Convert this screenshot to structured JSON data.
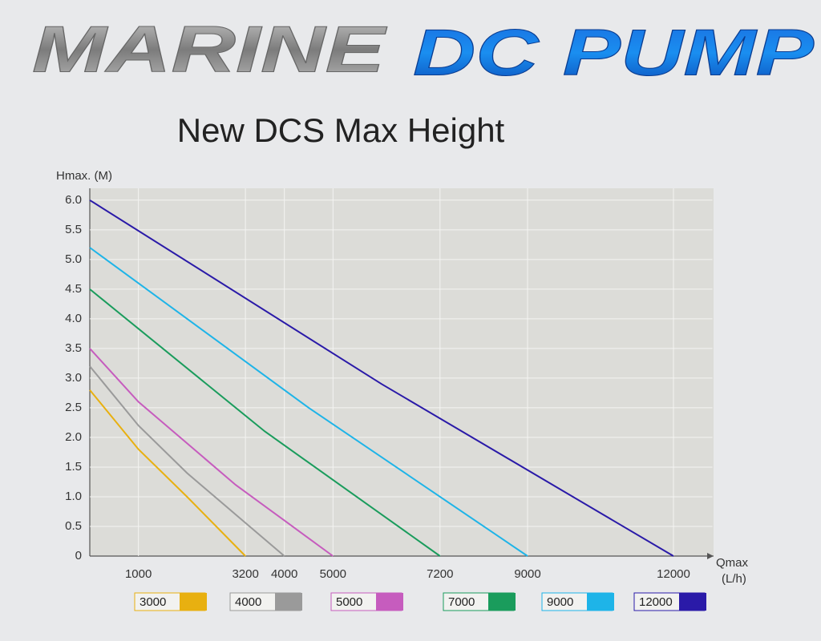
{
  "header": {
    "brand": "MARINE",
    "product": "DC PUMP"
  },
  "chart_data": {
    "type": "line",
    "title": "New DCS Max Height",
    "y_label": "Hmax. (M)",
    "x_label": "Qmax",
    "x_unit": "(L/h)",
    "xlim": [
      0,
      12800
    ],
    "ylim": [
      0,
      6.2
    ],
    "xticks": [
      1000,
      3200,
      4000,
      5000,
      7200,
      9000,
      12000
    ],
    "yticks": [
      0,
      0.5,
      {
        "value": 1.0,
        "label": "1.0"
      },
      1.5,
      {
        "value": 2.0,
        "label": "2.0"
      },
      2.5,
      {
        "value": 3.0,
        "label": "3.0"
      },
      3.5,
      {
        "value": 4.0,
        "label": "4.0"
      },
      4.5,
      {
        "value": 5.0,
        "label": "5.0"
      },
      5.5,
      {
        "value": 6.0,
        "label": "6.0"
      }
    ],
    "grid": true,
    "series": [
      {
        "name": "3000",
        "color": "#e8b010",
        "x": [
          0,
          1000,
          2000,
          3200
        ],
        "values": [
          2.8,
          1.8,
          1.0,
          0
        ]
      },
      {
        "name": "4000",
        "color": "#9a9a9a",
        "x": [
          0,
          1000,
          2000,
          3000,
          4000
        ],
        "values": [
          3.2,
          2.2,
          1.4,
          0.7,
          0
        ]
      },
      {
        "name": "5000",
        "color": "#c65cbe",
        "x": [
          0,
          1000,
          2000,
          3000,
          4000,
          5000
        ],
        "values": [
          3.5,
          2.6,
          1.9,
          1.2,
          0.6,
          0
        ]
      },
      {
        "name": "7000",
        "color": "#1a9c5c",
        "x": [
          0,
          3600,
          7200
        ],
        "values": [
          4.5,
          2.1,
          0
        ]
      },
      {
        "name": "9000",
        "color": "#1eb4e8",
        "x": [
          0,
          4500,
          9000
        ],
        "values": [
          5.2,
          2.5,
          0
        ]
      },
      {
        "name": "12000",
        "color": "#2a1aa8",
        "x": [
          0,
          6000,
          12000
        ],
        "values": [
          6.0,
          2.9,
          0
        ]
      }
    ]
  }
}
